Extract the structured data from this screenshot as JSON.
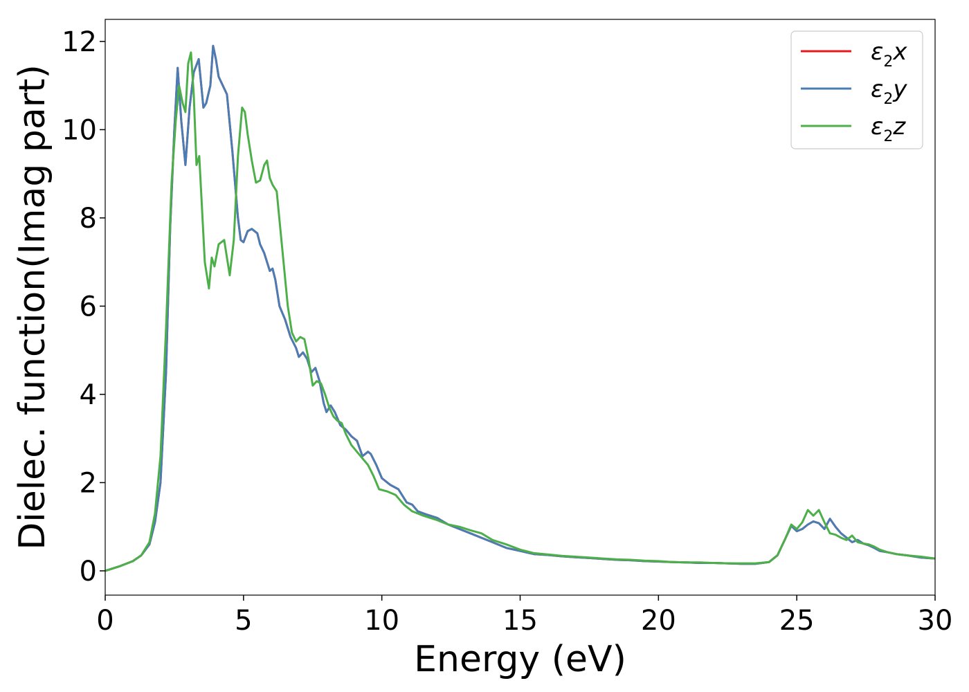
{
  "chart_data": {
    "type": "line",
    "xlabel": "Energy (eV)",
    "ylabel": "Dielec. function(Imag part)",
    "xlim": [
      0,
      30
    ],
    "ylim": [
      -0.55,
      12.5
    ],
    "xticks": [
      0,
      5,
      10,
      15,
      20,
      25,
      30
    ],
    "yticks": [
      0,
      2,
      4,
      6,
      8,
      10,
      12
    ],
    "grid": false,
    "legend_position": "top-right",
    "series": [
      {
        "name": "ε₂x",
        "legend_base": "ε",
        "legend_sub": "2",
        "legend_suffix": "x",
        "color": "#e41a1c",
        "x": [
          0,
          0.5,
          1.0,
          1.3,
          1.6,
          1.8,
          2.0,
          2.2,
          2.35,
          2.5,
          2.62,
          2.75,
          2.9,
          3.05,
          3.2,
          3.38,
          3.55,
          3.65,
          3.8,
          3.9,
          4.0,
          4.1,
          4.25,
          4.4,
          4.6,
          4.8,
          4.9,
          5.0,
          5.15,
          5.3,
          5.5,
          5.6,
          5.75,
          5.85,
          5.95,
          6.05,
          6.15,
          6.3,
          6.5,
          6.7,
          6.9,
          7.0,
          7.15,
          7.3,
          7.45,
          7.6,
          7.75,
          7.9,
          8.0,
          8.15,
          8.3,
          8.5,
          8.7,
          8.9,
          9.1,
          9.3,
          9.5,
          9.6,
          9.8,
          10.0,
          10.3,
          10.6,
          10.9,
          11.1,
          11.3,
          11.6,
          12.0,
          12.4,
          12.8,
          13.2,
          13.6,
          14.0,
          14.5,
          15.0,
          15.5,
          16.0,
          16.5,
          17.0,
          17.5,
          18.0,
          18.5,
          19.0,
          19.5,
          20.0,
          20.5,
          21.0,
          21.5,
          22.0,
          22.5,
          23.0,
          23.5,
          24.0,
          24.3,
          24.6,
          24.8,
          25.0,
          25.2,
          25.4,
          25.6,
          25.8,
          26.0,
          26.2,
          26.4,
          26.6,
          26.8,
          27.0,
          27.2,
          27.4,
          27.6,
          27.8,
          28.0,
          28.3,
          28.6,
          29.0,
          29.5,
          30.0
        ],
        "y": [
          0.0,
          0.1,
          0.22,
          0.35,
          0.6,
          1.1,
          2.0,
          4.5,
          7.8,
          10.0,
          11.4,
          10.2,
          9.2,
          10.5,
          11.3,
          11.6,
          10.5,
          10.6,
          11.0,
          11.9,
          11.6,
          11.2,
          11.0,
          10.8,
          9.5,
          8.0,
          7.5,
          7.45,
          7.7,
          7.75,
          7.65,
          7.4,
          7.2,
          7.0,
          6.8,
          6.85,
          6.6,
          6.0,
          5.7,
          5.3,
          5.05,
          4.85,
          4.95,
          4.8,
          4.5,
          4.6,
          4.3,
          3.8,
          3.6,
          3.75,
          3.6,
          3.3,
          3.2,
          3.05,
          2.95,
          2.6,
          2.7,
          2.65,
          2.4,
          2.1,
          1.95,
          1.85,
          1.55,
          1.5,
          1.35,
          1.28,
          1.2,
          1.05,
          0.95,
          0.85,
          0.75,
          0.65,
          0.52,
          0.45,
          0.38,
          0.36,
          0.33,
          0.31,
          0.29,
          0.27,
          0.25,
          0.24,
          0.22,
          0.21,
          0.2,
          0.19,
          0.18,
          0.18,
          0.17,
          0.16,
          0.16,
          0.2,
          0.35,
          0.75,
          1.02,
          0.9,
          0.95,
          1.05,
          1.12,
          1.08,
          0.95,
          1.18,
          1.0,
          0.85,
          0.75,
          0.65,
          0.7,
          0.62,
          0.58,
          0.52,
          0.45,
          0.42,
          0.38,
          0.35,
          0.3,
          0.28
        ]
      },
      {
        "name": "ε₂y",
        "legend_base": "ε",
        "legend_sub": "2",
        "legend_suffix": "y",
        "color": "#4a7db4",
        "x": [
          0,
          0.5,
          1.0,
          1.3,
          1.6,
          1.8,
          2.0,
          2.2,
          2.35,
          2.5,
          2.62,
          2.75,
          2.9,
          3.05,
          3.2,
          3.38,
          3.55,
          3.65,
          3.8,
          3.9,
          4.0,
          4.1,
          4.25,
          4.4,
          4.6,
          4.8,
          4.9,
          5.0,
          5.15,
          5.3,
          5.5,
          5.6,
          5.75,
          5.85,
          5.95,
          6.05,
          6.15,
          6.3,
          6.5,
          6.7,
          6.9,
          7.0,
          7.15,
          7.3,
          7.45,
          7.6,
          7.75,
          7.9,
          8.0,
          8.15,
          8.3,
          8.5,
          8.7,
          8.9,
          9.1,
          9.3,
          9.5,
          9.6,
          9.8,
          10.0,
          10.3,
          10.6,
          10.9,
          11.1,
          11.3,
          11.6,
          12.0,
          12.4,
          12.8,
          13.2,
          13.6,
          14.0,
          14.5,
          15.0,
          15.5,
          16.0,
          16.5,
          17.0,
          17.5,
          18.0,
          18.5,
          19.0,
          19.5,
          20.0,
          20.5,
          21.0,
          21.5,
          22.0,
          22.5,
          23.0,
          23.5,
          24.0,
          24.3,
          24.6,
          24.8,
          25.0,
          25.2,
          25.4,
          25.6,
          25.8,
          26.0,
          26.2,
          26.4,
          26.6,
          26.8,
          27.0,
          27.2,
          27.4,
          27.6,
          27.8,
          28.0,
          28.3,
          28.6,
          29.0,
          29.5,
          30.0
        ],
        "y": [
          0.0,
          0.1,
          0.22,
          0.35,
          0.6,
          1.1,
          2.0,
          4.5,
          7.8,
          10.0,
          11.4,
          10.2,
          9.2,
          10.5,
          11.3,
          11.6,
          10.5,
          10.6,
          11.0,
          11.9,
          11.6,
          11.2,
          11.0,
          10.8,
          9.5,
          8.0,
          7.5,
          7.45,
          7.7,
          7.75,
          7.65,
          7.4,
          7.2,
          7.0,
          6.8,
          6.85,
          6.6,
          6.0,
          5.7,
          5.3,
          5.05,
          4.85,
          4.95,
          4.8,
          4.5,
          4.6,
          4.3,
          3.8,
          3.6,
          3.75,
          3.6,
          3.3,
          3.2,
          3.05,
          2.95,
          2.6,
          2.7,
          2.65,
          2.4,
          2.1,
          1.95,
          1.85,
          1.55,
          1.5,
          1.35,
          1.28,
          1.2,
          1.05,
          0.95,
          0.85,
          0.75,
          0.65,
          0.52,
          0.45,
          0.38,
          0.36,
          0.33,
          0.31,
          0.29,
          0.27,
          0.25,
          0.24,
          0.22,
          0.21,
          0.2,
          0.19,
          0.18,
          0.18,
          0.17,
          0.16,
          0.16,
          0.2,
          0.35,
          0.75,
          1.02,
          0.9,
          0.95,
          1.05,
          1.12,
          1.08,
          0.95,
          1.18,
          1.0,
          0.85,
          0.75,
          0.65,
          0.7,
          0.62,
          0.58,
          0.52,
          0.45,
          0.42,
          0.38,
          0.35,
          0.3,
          0.28
        ]
      },
      {
        "name": "ε₂z",
        "legend_base": "ε",
        "legend_sub": "2",
        "legend_suffix": "z",
        "color": "#4daf4a",
        "x": [
          0,
          0.5,
          1.0,
          1.3,
          1.6,
          1.8,
          2.0,
          2.2,
          2.4,
          2.55,
          2.67,
          2.8,
          2.9,
          3.0,
          3.1,
          3.2,
          3.3,
          3.4,
          3.5,
          3.6,
          3.75,
          3.85,
          3.95,
          4.1,
          4.3,
          4.5,
          4.65,
          4.8,
          4.95,
          5.05,
          5.15,
          5.3,
          5.45,
          5.6,
          5.75,
          5.85,
          5.95,
          6.05,
          6.2,
          6.4,
          6.6,
          6.75,
          6.9,
          7.05,
          7.2,
          7.35,
          7.5,
          7.65,
          7.8,
          7.95,
          8.1,
          8.25,
          8.4,
          8.55,
          8.7,
          8.9,
          9.1,
          9.3,
          9.5,
          9.7,
          9.9,
          10.2,
          10.5,
          10.8,
          11.1,
          11.5,
          12.0,
          12.4,
          12.8,
          13.2,
          13.6,
          14.0,
          14.5,
          15.0,
          15.5,
          16.0,
          16.5,
          17.0,
          17.5,
          18.0,
          18.5,
          19.0,
          19.5,
          20.0,
          20.5,
          21.0,
          21.5,
          22.0,
          22.5,
          23.0,
          23.5,
          24.0,
          24.3,
          24.6,
          24.8,
          25.0,
          25.2,
          25.4,
          25.6,
          25.8,
          26.0,
          26.2,
          26.4,
          26.6,
          26.8,
          27.0,
          27.2,
          27.4,
          27.6,
          27.8,
          28.0,
          28.3,
          28.6,
          29.0,
          29.5,
          30.0
        ],
        "y": [
          0.0,
          0.1,
          0.22,
          0.35,
          0.65,
          1.3,
          2.6,
          5.5,
          8.8,
          10.2,
          11.0,
          10.6,
          10.4,
          11.5,
          11.75,
          10.8,
          9.2,
          9.4,
          8.2,
          7.0,
          6.4,
          7.1,
          6.9,
          7.4,
          7.5,
          6.7,
          7.5,
          9.4,
          10.5,
          10.4,
          9.9,
          9.3,
          8.8,
          8.85,
          9.2,
          9.3,
          8.9,
          8.75,
          8.6,
          7.3,
          6.0,
          5.4,
          5.2,
          5.3,
          5.25,
          4.8,
          4.2,
          4.3,
          4.25,
          4.0,
          3.7,
          3.5,
          3.4,
          3.35,
          3.1,
          2.85,
          2.7,
          2.55,
          2.4,
          2.15,
          1.85,
          1.8,
          1.72,
          1.5,
          1.35,
          1.25,
          1.15,
          1.05,
          1.0,
          0.92,
          0.85,
          0.7,
          0.6,
          0.48,
          0.4,
          0.37,
          0.34,
          0.32,
          0.3,
          0.28,
          0.26,
          0.25,
          0.23,
          0.22,
          0.2,
          0.19,
          0.19,
          0.18,
          0.17,
          0.17,
          0.17,
          0.2,
          0.35,
          0.75,
          1.05,
          0.95,
          1.1,
          1.38,
          1.25,
          1.38,
          1.1,
          0.85,
          0.82,
          0.75,
          0.7,
          0.8,
          0.65,
          0.62,
          0.6,
          0.55,
          0.48,
          0.42,
          0.38,
          0.35,
          0.32,
          0.28
        ]
      }
    ]
  }
}
